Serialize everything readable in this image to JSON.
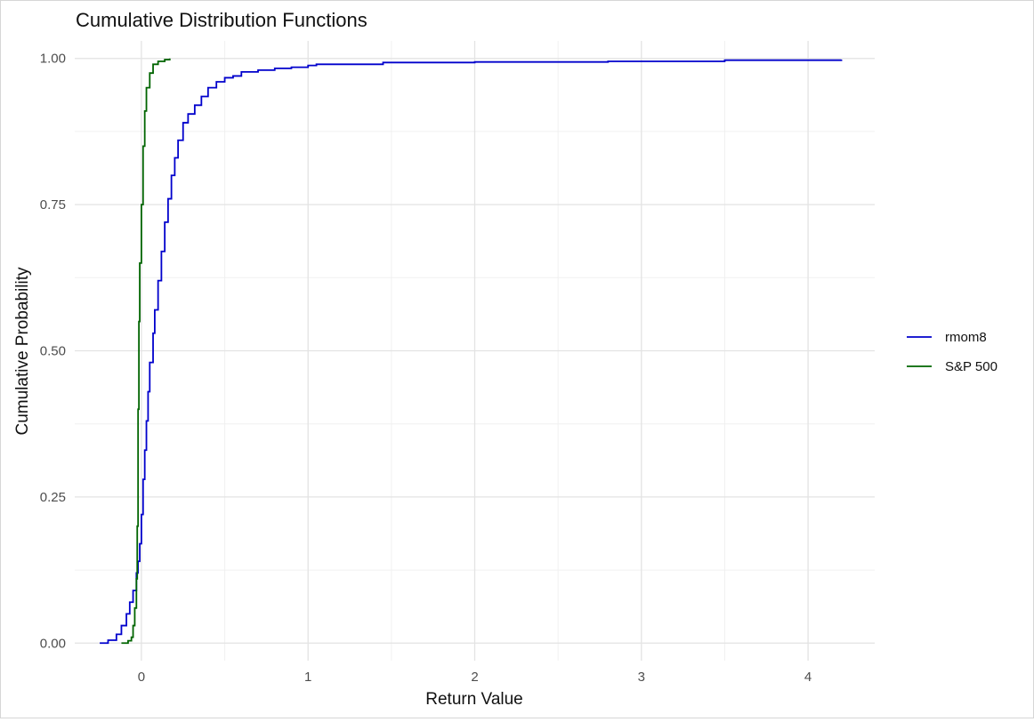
{
  "chart_data": {
    "type": "line",
    "title": "Cumulative Distribution Functions",
    "xlabel": "Return Value",
    "ylabel": "Cumulative Probability",
    "xlim": [
      -0.4,
      4.4
    ],
    "ylim": [
      -0.03,
      1.03
    ],
    "x_ticks": [
      0,
      1,
      2,
      3,
      4
    ],
    "x_tick_labels": [
      "0",
      "1",
      "2",
      "3",
      "4"
    ],
    "y_ticks": [
      0,
      0.25,
      0.5,
      0.75,
      1
    ],
    "y_tick_labels": [
      "0.00",
      "0.25",
      "0.50",
      "0.75",
      "1.00"
    ],
    "grid": true,
    "legend_position": "right",
    "series": [
      {
        "name": "rmom8",
        "color": "#0000cc",
        "points": [
          [
            -0.25,
            0.0
          ],
          [
            -0.2,
            0.005
          ],
          [
            -0.15,
            0.015
          ],
          [
            -0.12,
            0.03
          ],
          [
            -0.09,
            0.05
          ],
          [
            -0.07,
            0.07
          ],
          [
            -0.05,
            0.09
          ],
          [
            -0.03,
            0.12
          ],
          [
            -0.02,
            0.14
          ],
          [
            -0.01,
            0.17
          ],
          [
            0.0,
            0.22
          ],
          [
            0.01,
            0.28
          ],
          [
            0.02,
            0.33
          ],
          [
            0.03,
            0.38
          ],
          [
            0.04,
            0.43
          ],
          [
            0.05,
            0.48
          ],
          [
            0.07,
            0.53
          ],
          [
            0.08,
            0.57
          ],
          [
            0.1,
            0.62
          ],
          [
            0.12,
            0.67
          ],
          [
            0.14,
            0.72
          ],
          [
            0.16,
            0.76
          ],
          [
            0.18,
            0.8
          ],
          [
            0.2,
            0.83
          ],
          [
            0.22,
            0.86
          ],
          [
            0.25,
            0.89
          ],
          [
            0.28,
            0.905
          ],
          [
            0.32,
            0.92
          ],
          [
            0.36,
            0.935
          ],
          [
            0.4,
            0.95
          ],
          [
            0.45,
            0.96
          ],
          [
            0.5,
            0.967
          ],
          [
            0.55,
            0.97
          ],
          [
            0.6,
            0.977
          ],
          [
            0.7,
            0.98
          ],
          [
            0.8,
            0.983
          ],
          [
            0.9,
            0.985
          ],
          [
            1.0,
            0.988
          ],
          [
            1.05,
            0.99
          ],
          [
            1.45,
            0.993
          ],
          [
            2.0,
            0.994
          ],
          [
            2.8,
            0.995
          ],
          [
            3.5,
            0.997
          ],
          [
            4.2,
            0.998
          ]
        ]
      },
      {
        "name": "S&P 500",
        "color": "#006400",
        "points": [
          [
            -0.12,
            0.0
          ],
          [
            -0.08,
            0.004
          ],
          [
            -0.06,
            0.01
          ],
          [
            -0.05,
            0.03
          ],
          [
            -0.04,
            0.06
          ],
          [
            -0.03,
            0.11
          ],
          [
            -0.025,
            0.2
          ],
          [
            -0.02,
            0.4
          ],
          [
            -0.015,
            0.55
          ],
          [
            -0.01,
            0.65
          ],
          [
            0.0,
            0.75
          ],
          [
            0.01,
            0.85
          ],
          [
            0.02,
            0.91
          ],
          [
            0.03,
            0.95
          ],
          [
            0.05,
            0.975
          ],
          [
            0.07,
            0.99
          ],
          [
            0.1,
            0.995
          ],
          [
            0.14,
            0.998
          ],
          [
            0.17,
            1.0
          ]
        ]
      }
    ]
  }
}
